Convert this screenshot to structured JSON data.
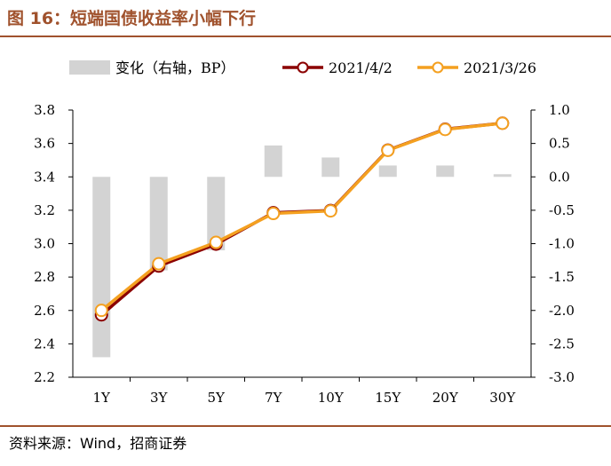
{
  "title": "图 16：短端国债收益率小幅下行",
  "source": "资料来源：Wind，招商证券",
  "chart_data": {
    "type": "bar+line",
    "categories": [
      "1Y",
      "3Y",
      "5Y",
      "7Y",
      "10Y",
      "15Y",
      "20Y",
      "30Y"
    ],
    "y_left": {
      "range": [
        2.2,
        3.8
      ],
      "ticks": [
        "2.2",
        "2.4",
        "2.6",
        "2.8",
        "3.0",
        "3.2",
        "3.4",
        "3.6",
        "3.8"
      ]
    },
    "y_right": {
      "range": [
        -3.0,
        1.0
      ],
      "ticks": [
        "-3.0",
        "-2.5",
        "-2.0",
        "-1.5",
        "-1.0",
        "-0.5",
        "0.0",
        "0.5",
        "1.0"
      ]
    },
    "legend_position": "top",
    "series": [
      {
        "name": "变化（右轴，BP）",
        "kind": "bar",
        "axis": "right",
        "color": "#d3d3d3",
        "values": [
          -2.7,
          -1.4,
          -1.1,
          0.47,
          0.29,
          0.17,
          0.17,
          0.04
        ]
      },
      {
        "name": "2021/4/2",
        "kind": "line",
        "axis": "left",
        "color": "#8b0000",
        "values": [
          2.5734,
          2.8656,
          2.9969,
          3.1853,
          3.1989,
          3.5603,
          3.6856,
          3.7215
        ]
      },
      {
        "name": "2021/3/26",
        "kind": "line",
        "axis": "left",
        "color": "#f4a020",
        "values": [
          2.6004,
          2.8796,
          3.0079,
          3.1806,
          3.196,
          3.5586,
          3.6839,
          3.7211
        ]
      }
    ]
  }
}
